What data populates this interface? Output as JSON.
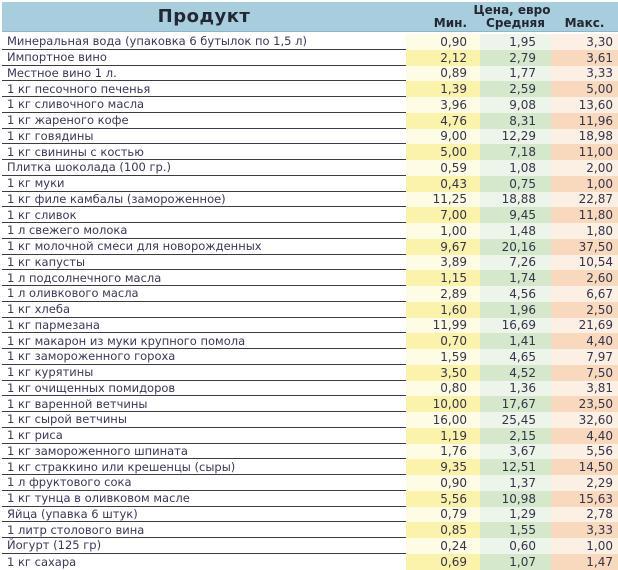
{
  "colors": {
    "header_bg": "#A8CDDC",
    "header_text": "#232733",
    "product_text": "#3F3557",
    "min_col_pale": "#FEFCE4",
    "min_col_strong": "#FBF3AB",
    "avg_col_pale": "#EDF4E9",
    "avg_col_strong": "#D5E8CC",
    "max_col_pale": "#FCEFE4",
    "max_col_strong": "#F9D9BD"
  },
  "chart_data": {
    "type": "table",
    "title": "",
    "price_group_header": "Цена, евро",
    "columns": [
      "Продукт",
      "Мин.",
      "Средняя",
      "Макс."
    ],
    "rows": [
      {
        "name": "Минеральная вода (упаковка 6 бутылок по 1,5 л)",
        "min": "0,90",
        "avg": "1,95",
        "max": "3,30"
      },
      {
        "name": "Импортное вино",
        "min": "2,12",
        "avg": "2,79",
        "max": "3,61"
      },
      {
        "name": "Местное вино 1 л.",
        "min": "0,89",
        "avg": "1,77",
        "max": "3,33"
      },
      {
        "name": "1 кг песочного печенья",
        "min": "1,39",
        "avg": "2,59",
        "max": "5,00"
      },
      {
        "name": "1 кг сливочного масла",
        "min": "3,96",
        "avg": "9,08",
        "max": "13,60"
      },
      {
        "name": "1 кг жареного кофе",
        "min": "4,76",
        "avg": "8,31",
        "max": "11,96"
      },
      {
        "name": "1 кг говядины",
        "min": "9,00",
        "avg": "12,29",
        "max": "18,98"
      },
      {
        "name": "1 кг свинины с костью",
        "min": "5,00",
        "avg": "7,18",
        "max": "11,00"
      },
      {
        "name": "Плитка шоколада (100 гр.)",
        "min": "0,59",
        "avg": "1,08",
        "max": "2,00"
      },
      {
        "name": "1 кг муки",
        "min": "0,43",
        "avg": "0,75",
        "max": "1,00"
      },
      {
        "name": "1 кг филе камбалы (замороженное)",
        "min": "11,25",
        "avg": "18,88",
        "max": "22,87"
      },
      {
        "name": "1 кг сливок",
        "min": "7,00",
        "avg": "9,45",
        "max": "11,80"
      },
      {
        "name": "1 л свежего молока",
        "min": "1,00",
        "avg": "1,48",
        "max": "1,80"
      },
      {
        "name": "1 кг молочной смеси для новорожденных",
        "min": "9,67",
        "avg": "20,16",
        "max": "37,50"
      },
      {
        "name": "1 кг капусты",
        "min": "3,89",
        "avg": "7,26",
        "max": "10,54"
      },
      {
        "name": "1 л подсолнечного масла",
        "min": "1,15",
        "avg": "1,74",
        "max": "2,60"
      },
      {
        "name": "1 л оливкового масла",
        "min": "2,89",
        "avg": "4,56",
        "max": "6,67"
      },
      {
        "name": "1 кг хлеба",
        "min": "1,60",
        "avg": "1,96",
        "max": "2,50"
      },
      {
        "name": "1 кг пармезана",
        "min": "11,99",
        "avg": "16,69",
        "max": "21,69"
      },
      {
        "name": "1 кг макарон из муки крупного помола",
        "min": "0,70",
        "avg": "1,41",
        "max": "4,40"
      },
      {
        "name": "1 кг замороженного гороха",
        "min": "1,59",
        "avg": "4,65",
        "max": "7,97"
      },
      {
        "name": "1 кг курятины",
        "min": "3,50",
        "avg": "4,52",
        "max": "7,50"
      },
      {
        "name": "1 кг очищенных помидоров",
        "min": "0,80",
        "avg": "1,36",
        "max": "3,81"
      },
      {
        "name": "1 кг варенной ветчины",
        "min": "10,00",
        "avg": "17,67",
        "max": "23,50"
      },
      {
        "name": "1 кг сырой ветчины",
        "min": "16,00",
        "avg": "25,45",
        "max": "32,60"
      },
      {
        "name": "1 кг риса",
        "min": "1,19",
        "avg": "2,15",
        "max": "4,40"
      },
      {
        "name": "1 кг замороженного шпината",
        "min": "1,76",
        "avg": "3,67",
        "max": "5,56"
      },
      {
        "name": "1 кг страккино или крешенцы (сыры)",
        "min": "9,35",
        "avg": "12,51",
        "max": "14,50"
      },
      {
        "name": "1 л фруктового сока",
        "min": "0,90",
        "avg": "1,37",
        "max": "2,29"
      },
      {
        "name": "1 кг тунца в оливковом масле",
        "min": "5,56",
        "avg": "10,98",
        "max": "15,63"
      },
      {
        "name": "Яйца (упавка 6 штук)",
        "min": "0,79",
        "avg": "1,29",
        "max": "2,78"
      },
      {
        "name": "1 литр столового вина",
        "min": "0,85",
        "avg": "1,55",
        "max": "3,33"
      },
      {
        "name": "Йогурт (125 гр)",
        "min": "0,24",
        "avg": "0,60",
        "max": "1,00"
      },
      {
        "name": "1 кг сахара",
        "min": "0,69",
        "avg": "1,07",
        "max": "1,47"
      }
    ]
  }
}
